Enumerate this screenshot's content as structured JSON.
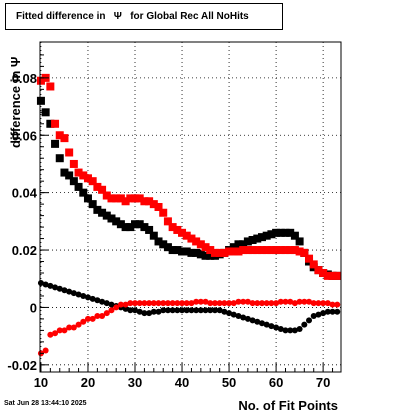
{
  "title_box": {
    "text": "Fitted difference in   Ψ   for Global Rec All NoHits"
  },
  "timestamp": "Sat Jun 28 13:44:10 2025",
  "chart_data": {
    "type": "scatter",
    "title": "Fitted difference in Ψ for Global Rec All NoHits",
    "xlabel": "No. of Fit Points",
    "ylabel": "difference in Ψ",
    "xlim": [
      9.8,
      73.8
    ],
    "ylim": [
      -0.0225,
      0.0925
    ],
    "xticks": [
      10,
      20,
      30,
      40,
      50,
      60,
      70
    ],
    "yticks": [
      -0.02,
      0,
      0.02,
      0.04,
      0.06,
      0.08
    ],
    "ytick_labels": [
      "-0.02",
      "0",
      "0.02",
      "0.04",
      "0.06",
      "0.08"
    ],
    "grid": true,
    "series": [
      {
        "color": "#000000",
        "marker": "square",
        "x": [
          10,
          11,
          12,
          13,
          14,
          15,
          16,
          17,
          18,
          19,
          20,
          21,
          22,
          23,
          24,
          25,
          26,
          27,
          28,
          29,
          30,
          31,
          32,
          33,
          34,
          35,
          36,
          37,
          38,
          39,
          40,
          41,
          42,
          43,
          44,
          45,
          46,
          47,
          48,
          49,
          50,
          51,
          52,
          53,
          54,
          55,
          56,
          57,
          58,
          59,
          60,
          61,
          62,
          63,
          64,
          65,
          66,
          67,
          68,
          69,
          70,
          71,
          72,
          73
        ],
        "y": [
          0.072,
          0.068,
          0.064,
          0.057,
          0.052,
          0.047,
          0.046,
          0.044,
          0.042,
          0.04,
          0.038,
          0.036,
          0.034,
          0.033,
          0.032,
          0.031,
          0.03,
          0.029,
          0.028,
          0.028,
          0.029,
          0.029,
          0.028,
          0.027,
          0.025,
          0.023,
          0.022,
          0.021,
          0.02,
          0.02,
          0.0195,
          0.0195,
          0.019,
          0.019,
          0.0185,
          0.018,
          0.018,
          0.018,
          0.0185,
          0.019,
          0.02,
          0.021,
          0.022,
          0.022,
          0.023,
          0.0235,
          0.024,
          0.0245,
          0.025,
          0.0255,
          0.026,
          0.026,
          0.026,
          0.026,
          0.025,
          0.023,
          0.019,
          0.016,
          0.014,
          0.013,
          0.012,
          0.0115,
          0.011,
          0.011
        ]
      },
      {
        "color": "#ff0000",
        "marker": "square",
        "x": [
          10,
          11,
          12,
          13,
          14,
          15,
          16,
          17,
          18,
          19,
          20,
          21,
          22,
          23,
          24,
          25,
          26,
          27,
          28,
          29,
          30,
          31,
          32,
          33,
          34,
          35,
          36,
          37,
          38,
          39,
          40,
          41,
          42,
          43,
          44,
          45,
          46,
          47,
          48,
          49,
          50,
          51,
          52,
          53,
          54,
          55,
          56,
          57,
          58,
          59,
          60,
          61,
          62,
          63,
          64,
          65,
          66,
          67,
          68,
          69,
          70,
          71,
          72,
          73
        ],
        "y": [
          0.079,
          0.08,
          0.077,
          0.064,
          0.06,
          0.059,
          0.054,
          0.05,
          0.047,
          0.046,
          0.045,
          0.044,
          0.042,
          0.041,
          0.039,
          0.038,
          0.038,
          0.038,
          0.037,
          0.038,
          0.038,
          0.038,
          0.037,
          0.037,
          0.036,
          0.035,
          0.033,
          0.03,
          0.028,
          0.027,
          0.026,
          0.025,
          0.024,
          0.023,
          0.022,
          0.021,
          0.02,
          0.019,
          0.019,
          0.019,
          0.0195,
          0.0195,
          0.0195,
          0.02,
          0.02,
          0.02,
          0.02,
          0.02,
          0.02,
          0.02,
          0.02,
          0.02,
          0.02,
          0.02,
          0.02,
          0.0195,
          0.019,
          0.017,
          0.015,
          0.013,
          0.012,
          0.011,
          0.011,
          0.011
        ]
      },
      {
        "color": "#000000",
        "marker": "circle",
        "x": [
          10,
          11,
          12,
          13,
          14,
          15,
          16,
          17,
          18,
          19,
          20,
          21,
          22,
          23,
          24,
          25,
          26,
          27,
          28,
          29,
          30,
          31,
          32,
          33,
          34,
          35,
          36,
          37,
          38,
          39,
          40,
          41,
          42,
          43,
          44,
          45,
          46,
          47,
          48,
          49,
          50,
          51,
          52,
          53,
          54,
          55,
          56,
          57,
          58,
          59,
          60,
          61,
          62,
          63,
          64,
          65,
          66,
          67,
          68,
          69,
          70,
          71,
          72,
          73
        ],
        "y": [
          0.0085,
          0.008,
          0.0075,
          0.007,
          0.0065,
          0.006,
          0.0055,
          0.005,
          0.0045,
          0.004,
          0.0035,
          0.003,
          0.0025,
          0.002,
          0.0015,
          0.001,
          0.0005,
          0.0,
          -0.0005,
          -0.001,
          -0.001,
          -0.0015,
          -0.002,
          -0.002,
          -0.0015,
          -0.0015,
          -0.001,
          -0.001,
          -0.001,
          -0.001,
          -0.001,
          -0.001,
          -0.001,
          -0.001,
          -0.001,
          -0.001,
          -0.001,
          -0.001,
          -0.001,
          -0.0015,
          -0.002,
          -0.0025,
          -0.003,
          -0.0035,
          -0.004,
          -0.0045,
          -0.005,
          -0.0055,
          -0.006,
          -0.0065,
          -0.007,
          -0.0075,
          -0.008,
          -0.008,
          -0.008,
          -0.0075,
          -0.006,
          -0.0045,
          -0.003,
          -0.0025,
          -0.002,
          -0.0015,
          -0.0015,
          -0.0015
        ]
      },
      {
        "color": "#ff0000",
        "marker": "circle",
        "x": [
          10,
          11,
          12,
          13,
          14,
          15,
          16,
          17,
          18,
          19,
          20,
          21,
          22,
          23,
          24,
          25,
          26,
          27,
          28,
          29,
          30,
          31,
          32,
          33,
          34,
          35,
          36,
          37,
          38,
          39,
          40,
          41,
          42,
          43,
          44,
          45,
          46,
          47,
          48,
          49,
          50,
          51,
          52,
          53,
          54,
          55,
          56,
          57,
          58,
          59,
          60,
          61,
          62,
          63,
          64,
          65,
          66,
          67,
          68,
          69,
          70,
          71,
          72,
          73
        ],
        "y": [
          -0.016,
          -0.015,
          -0.0095,
          -0.009,
          -0.008,
          -0.008,
          -0.007,
          -0.007,
          -0.006,
          -0.005,
          -0.004,
          -0.004,
          -0.003,
          -0.003,
          -0.002,
          -0.001,
          0.0,
          0.001,
          0.001,
          0.0015,
          0.0015,
          0.0015,
          0.0015,
          0.0015,
          0.0015,
          0.0015,
          0.0015,
          0.0015,
          0.0015,
          0.0015,
          0.0015,
          0.0015,
          0.0015,
          0.002,
          0.002,
          0.002,
          0.0015,
          0.0015,
          0.0015,
          0.0015,
          0.0015,
          0.0015,
          0.002,
          0.002,
          0.002,
          0.0015,
          0.0015,
          0.0015,
          0.0015,
          0.0015,
          0.0015,
          0.002,
          0.002,
          0.002,
          0.0015,
          0.002,
          0.002,
          0.002,
          0.0015,
          0.0015,
          0.0015,
          0.0015,
          0.001,
          0.001
        ]
      }
    ]
  }
}
